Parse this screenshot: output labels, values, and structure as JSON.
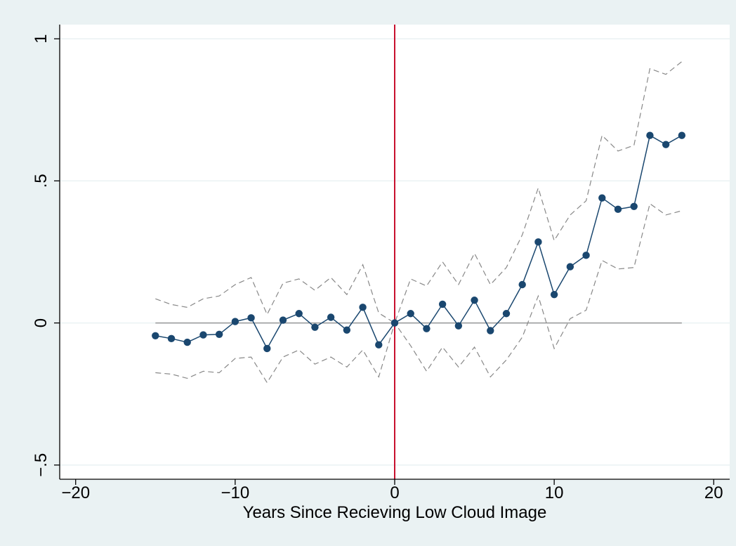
{
  "chart_data": {
    "type": "line",
    "title": "",
    "xlabel": "Years Since Recieving Low Cloud Image",
    "ylabel": "",
    "xlim": [
      -21,
      21
    ],
    "ylim": [
      -0.55,
      1.05
    ],
    "xticks": [
      -20,
      -10,
      0,
      10,
      20
    ],
    "xtick_labels": [
      "−20",
      "−10",
      "0",
      "10",
      "20"
    ],
    "yticks": [
      -0.5,
      0,
      0.5,
      1
    ],
    "ytick_labels": [
      "−.5",
      "0",
      ".5",
      "1"
    ],
    "grid": "horizontal",
    "reference_lines": {
      "vertical_x": 0,
      "horizontal_y": 0,
      "vertical_color": "#c8102e",
      "horizontal_color": "#888888"
    },
    "x": [
      -15,
      -14,
      -13,
      -12,
      -11,
      -10,
      -9,
      -8,
      -7,
      -6,
      -5,
      -4,
      -3,
      -2,
      -1,
      0,
      1,
      2,
      3,
      4,
      5,
      6,
      7,
      8,
      9,
      10,
      11,
      12,
      13,
      14,
      15,
      16,
      17,
      18
    ],
    "series": [
      {
        "role": "estimate",
        "color": "#1a476f",
        "values": [
          -0.045,
          -0.055,
          -0.068,
          -0.042,
          -0.04,
          0.005,
          0.018,
          -0.09,
          0.01,
          0.033,
          -0.015,
          0.02,
          -0.025,
          0.055,
          -0.077,
          0.0,
          0.033,
          -0.02,
          0.066,
          -0.01,
          0.08,
          -0.027,
          0.033,
          0.135,
          0.285,
          0.1,
          0.198,
          0.238,
          0.44,
          0.4,
          0.41,
          0.66,
          0.628,
          0.66
        ]
      },
      {
        "role": "upper-ci",
        "color": "#888888",
        "values": [
          0.085,
          0.065,
          0.055,
          0.085,
          0.095,
          0.135,
          0.16,
          0.03,
          0.14,
          0.155,
          0.115,
          0.16,
          0.1,
          0.205,
          0.035,
          0.0,
          0.155,
          0.13,
          0.215,
          0.135,
          0.245,
          0.135,
          0.195,
          0.31,
          0.475,
          0.29,
          0.38,
          0.43,
          0.66,
          0.605,
          0.625,
          0.895,
          0.875,
          0.92
        ]
      },
      {
        "role": "lower-ci",
        "color": "#888888",
        "values": [
          -0.175,
          -0.18,
          -0.195,
          -0.17,
          -0.175,
          -0.125,
          -0.12,
          -0.21,
          -0.12,
          -0.095,
          -0.145,
          -0.12,
          -0.155,
          -0.095,
          -0.19,
          0.0,
          -0.08,
          -0.17,
          -0.085,
          -0.155,
          -0.085,
          -0.19,
          -0.13,
          -0.05,
          0.095,
          -0.09,
          0.015,
          0.045,
          0.22,
          0.19,
          0.195,
          0.42,
          0.38,
          0.395
        ]
      }
    ]
  }
}
